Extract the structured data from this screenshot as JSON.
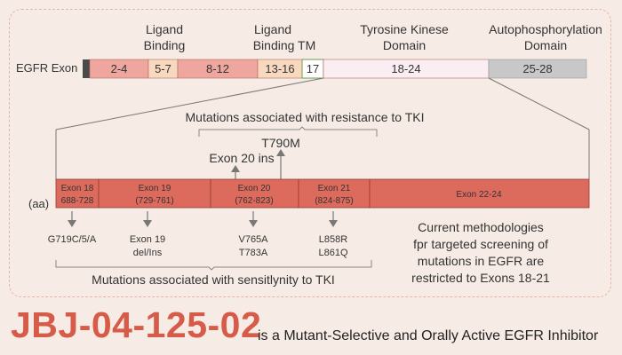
{
  "domain_labels": {
    "ligand_binding_1": [
      "Ligand",
      "Binding"
    ],
    "ligand_binding_2": [
      "Ligand",
      "Binding TM"
    ],
    "tyrosine_kinase": [
      "Tyrosine Kinese",
      "Domain"
    ],
    "autophosphorylation": [
      "Autophosphorylation",
      "Domain"
    ]
  },
  "exon_row_label": "EGFR Exon",
  "exon_segments": [
    "2-4",
    "5-7",
    "8-12",
    "13-16",
    "17",
    "18-24",
    "25-28"
  ],
  "resistance_caption": "Mutations associated with resistance to TKI",
  "resistance_mutations": {
    "t790m": "T790M",
    "exon20_ins": "Exon 20 ins"
  },
  "aa_label": "(aa)",
  "detail_segments": [
    {
      "exon": "Exon 18",
      "range": "688-728"
    },
    {
      "exon": "Exon 19",
      "range": "(729-761)"
    },
    {
      "exon": "Exon 20",
      "range": "(762-823)"
    },
    {
      "exon": "Exon 21",
      "range": "(824-875)"
    },
    {
      "exon": "Exon 22-24",
      "range": ""
    }
  ],
  "sensitivity_mutations": [
    [
      "G719C/5/A"
    ],
    [
      "Exon 19",
      "del/Ins"
    ],
    [
      "V765A",
      "T783A"
    ],
    [
      "L858R",
      "L861Q"
    ]
  ],
  "sensitivity_caption": "Mutations associated with sensitlynity to TKI",
  "note_lines": [
    "Current methodologies",
    "fpr targeted screening of",
    "mutations in EGFR are",
    "restricted to Exons 18-21"
  ],
  "footer": {
    "compound": "JBJ-04-125-02",
    "description": "is a Mutant-Selective and Orally Active EGFR Inhibitor"
  },
  "colors": {
    "background": "#f7ece5",
    "exon_red": "#eea69e",
    "exon_peach": "#f8d9bf",
    "exon_kinase": "#fbeef3",
    "exon_grey": "#c8c8c8",
    "detail_bar": "#dd6b5d",
    "accent": "#d65c49"
  }
}
